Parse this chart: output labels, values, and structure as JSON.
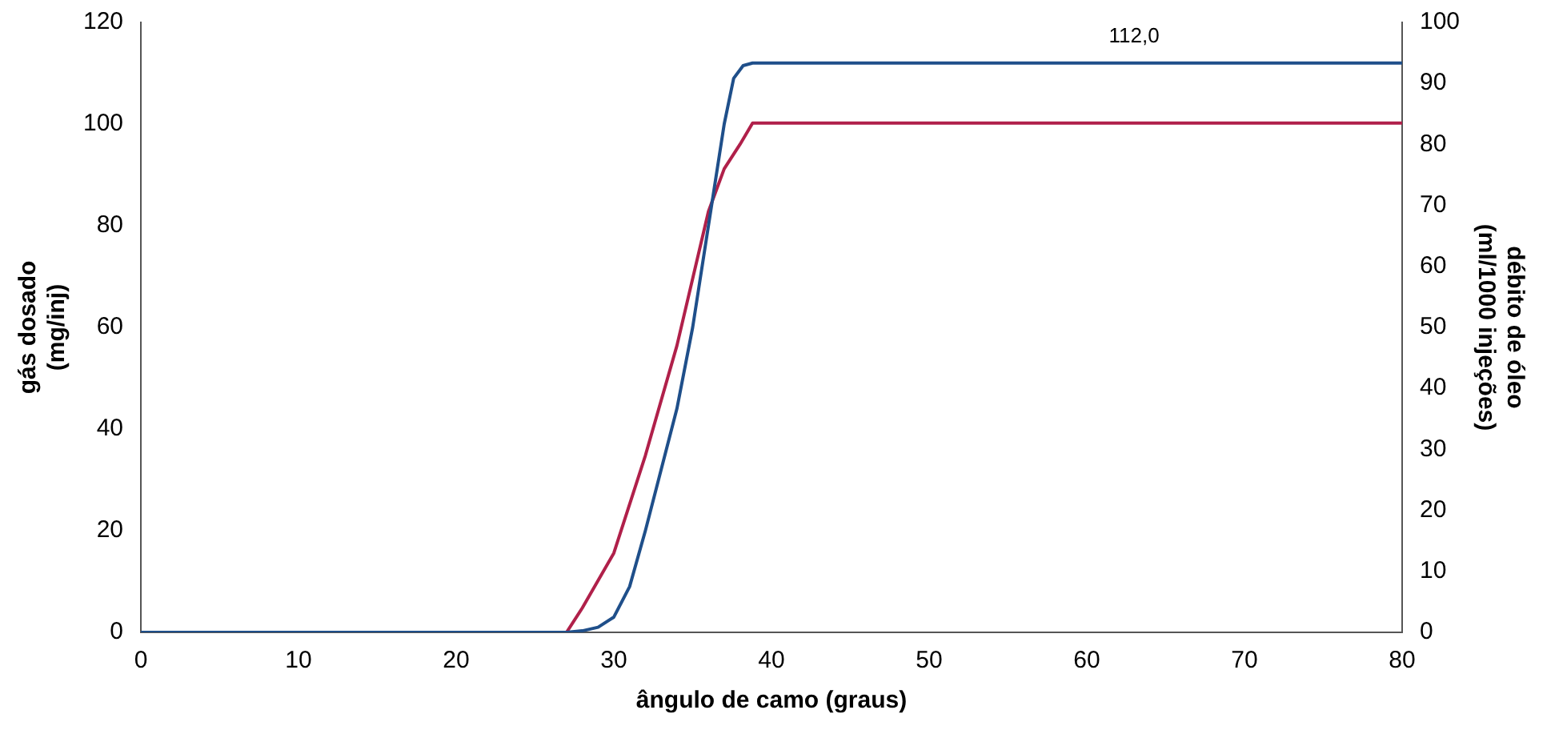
{
  "chart_data": {
    "type": "line",
    "xlabel": "ângulo de camo (graus)",
    "ylabel": "gás dosado\n(mg/inj)",
    "y2label": "débito de óleo\n(ml/1000 injeções)",
    "series": [
      {
        "color": "#1f4f8a",
        "x": [
          0,
          27,
          28,
          29,
          30,
          31,
          32,
          33,
          34,
          35,
          36,
          37,
          37.6,
          38.2,
          38.8,
          80
        ],
        "values": [
          0,
          0,
          0.3,
          1,
          3,
          9,
          20,
          32,
          44,
          60,
          80,
          100,
          109,
          111.5,
          112,
          112
        ]
      },
      {
        "color": "#b0204a",
        "axis": "y2",
        "x": [
          0,
          27,
          28,
          30,
          32,
          34,
          36,
          37,
          38,
          38.8,
          80
        ],
        "values": [
          0,
          0,
          4,
          13,
          29,
          47,
          69,
          76,
          80,
          83.5,
          83.5
        ]
      }
    ],
    "xlim": [
      0,
      80
    ],
    "xticks": [
      0,
      10,
      20,
      30,
      40,
      50,
      60,
      70,
      80
    ],
    "ylim": [
      0,
      120
    ],
    "yticks": [
      0,
      20,
      40,
      60,
      80,
      100,
      120
    ],
    "y2lim": [
      0,
      100
    ],
    "y2ticks": [
      0,
      10,
      20,
      30,
      40,
      50,
      60,
      70,
      80,
      90,
      100
    ],
    "annotations": [
      {
        "text": "112,0",
        "x": 63,
        "y": 112
      }
    ],
    "grid": false,
    "marker": "none",
    "line_style": "solid"
  }
}
